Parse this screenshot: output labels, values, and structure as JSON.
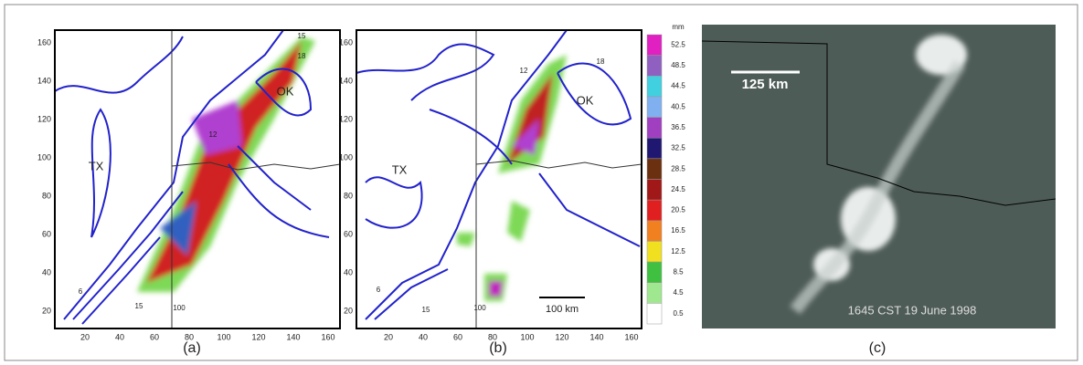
{
  "panel_a": {
    "caption": "(a)",
    "xticks": [
      20,
      40,
      60,
      80,
      100,
      120,
      140,
      160
    ],
    "yticks": [
      20,
      40,
      60,
      80,
      100,
      120,
      140,
      160
    ],
    "state_labels": [
      "TX",
      "OK"
    ],
    "contour_labels": [
      "6",
      "15",
      "12",
      "15",
      "18",
      "100"
    ]
  },
  "panel_b": {
    "caption": "(b)",
    "xticks": [
      20,
      40,
      60,
      80,
      100,
      120,
      140,
      160
    ],
    "yticks": [
      20,
      40,
      60,
      80,
      100,
      120,
      140,
      160
    ],
    "state_labels": [
      "TX",
      "OK"
    ],
    "contour_labels": [
      "12",
      "18",
      "6",
      "15",
      "100"
    ],
    "scale_bar": "100 km"
  },
  "colorbar": {
    "unit": "mm",
    "labels": [
      "52.5",
      "48.5",
      "44.5",
      "40.5",
      "36.5",
      "32.5",
      "28.5",
      "24.5",
      "20.5",
      "16.5",
      "12.5",
      "8.5",
      "4.5",
      "0.5"
    ]
  },
  "panel_c": {
    "caption": "(c)",
    "scale_bar": "125 km",
    "timestamp": "1645 CST 19 June 1998"
  }
}
